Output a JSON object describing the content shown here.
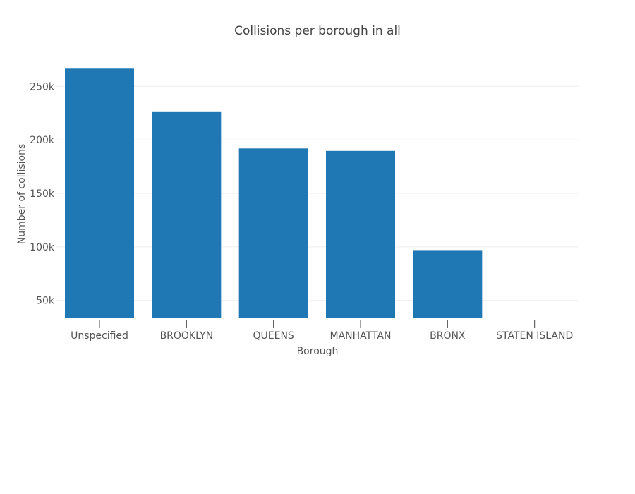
{
  "chart_data": {
    "type": "bar",
    "title": "Collisions per borough in all",
    "xlabel": "Borough",
    "ylabel": "Number of collisions",
    "categories": [
      "Unspecified",
      "BROOKLYN",
      "QUEENS",
      "MANHATTAN",
      "BRONX",
      "STATEN ISLAND"
    ],
    "values": [
      266500,
      226600,
      192000,
      189700,
      97000,
      34000
    ],
    "ylim": [
      34000,
      268000
    ],
    "yticks": [
      50000,
      100000,
      150000,
      200000,
      250000
    ],
    "ytick_labels": [
      "50k",
      "100k",
      "150k",
      "200k",
      "250k"
    ],
    "grid": true,
    "legend": false,
    "colors": {
      "bar": "#1f77b4",
      "grid": "#eeeeee",
      "text": "#555555",
      "title": "#444444"
    }
  }
}
